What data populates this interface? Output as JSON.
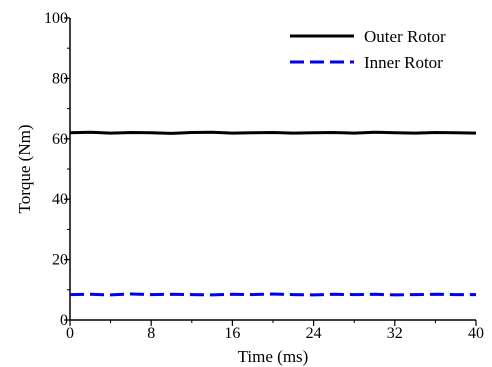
{
  "chart_data": {
    "type": "line",
    "title": "",
    "xlabel": "Time (ms)",
    "ylabel": "Torque (Nm)",
    "xlim": [
      0,
      40
    ],
    "ylim": [
      0,
      100
    ],
    "x_ticks": [
      0,
      8,
      16,
      24,
      32,
      40
    ],
    "y_ticks": [
      0,
      20,
      40,
      60,
      80,
      100
    ],
    "grid": false,
    "legend_position": "top-right",
    "x": [
      0,
      2,
      4,
      6,
      8,
      10,
      12,
      14,
      16,
      18,
      20,
      22,
      24,
      26,
      28,
      30,
      32,
      34,
      36,
      38,
      40
    ],
    "series": [
      {
        "name": "Outer Rotor",
        "color": "#000000",
        "style": "solid",
        "values": [
          62.0,
          62.2,
          61.9,
          62.1,
          62.0,
          61.8,
          62.1,
          62.2,
          61.9,
          62.0,
          62.1,
          61.9,
          62.0,
          62.1,
          61.9,
          62.2,
          62.0,
          61.9,
          62.1,
          62.0,
          61.9
        ]
      },
      {
        "name": "Inner Rotor",
        "color": "#0000ee",
        "style": "dashed",
        "values": [
          8.4,
          8.5,
          8.3,
          8.6,
          8.4,
          8.5,
          8.4,
          8.3,
          8.5,
          8.4,
          8.6,
          8.4,
          8.3,
          8.5,
          8.4,
          8.5,
          8.3,
          8.4,
          8.5,
          8.4,
          8.4
        ]
      }
    ]
  }
}
